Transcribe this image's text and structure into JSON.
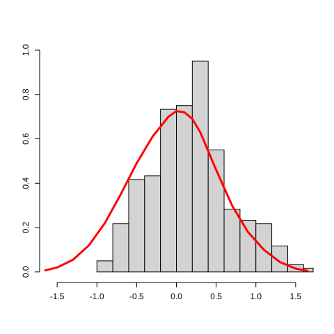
{
  "chart_data": {
    "type": "bar",
    "title": "",
    "xlabel": "",
    "ylabel": "",
    "xlim": [
      -1.72,
      1.72
    ],
    "ylim": [
      -0.01,
      1.0
    ],
    "x_ticks": [
      -1.5,
      -1.0,
      -0.5,
      0.0,
      0.5,
      1.0,
      1.5
    ],
    "x_tick_labels": [
      "-1.5",
      "-1.0",
      "-0.5",
      "0.0",
      "0.5",
      "1.0",
      "1.5"
    ],
    "y_ticks": [
      0.0,
      0.2,
      0.4,
      0.6,
      0.8,
      1.0
    ],
    "y_tick_labels": [
      "0.0",
      "0.2",
      "0.4",
      "0.6",
      "0.8",
      "1.0"
    ],
    "bin_width": 0.2,
    "bins": [
      {
        "x0": -1.0,
        "x1": -0.8,
        "density": 0.05
      },
      {
        "x0": -0.8,
        "x1": -0.6,
        "density": 0.217
      },
      {
        "x0": -0.6,
        "x1": -0.4,
        "density": 0.417
      },
      {
        "x0": -0.4,
        "x1": -0.2,
        "density": 0.433
      },
      {
        "x0": -0.2,
        "x1": 0.0,
        "density": 0.733
      },
      {
        "x0": 0.0,
        "x1": 0.2,
        "density": 0.75
      },
      {
        "x0": 0.2,
        "x1": 0.4,
        "density": 0.95
      },
      {
        "x0": 0.4,
        "x1": 0.6,
        "density": 0.55
      },
      {
        "x0": 0.6,
        "x1": 0.8,
        "density": 0.283
      },
      {
        "x0": 0.8,
        "x1": 1.0,
        "density": 0.233
      },
      {
        "x0": 1.0,
        "x1": 1.2,
        "density": 0.217
      },
      {
        "x0": 1.2,
        "x1": 1.4,
        "density": 0.117
      },
      {
        "x0": 1.4,
        "x1": 1.6,
        "density": 0.033
      },
      {
        "x0": 1.6,
        "x1": 1.8,
        "density": 0.017
      }
    ],
    "curve": {
      "type": "line",
      "color": "#ff0000",
      "points": [
        {
          "x": -1.65,
          "y": 0.007
        },
        {
          "x": -1.5,
          "y": 0.02
        },
        {
          "x": -1.3,
          "y": 0.055
        },
        {
          "x": -1.1,
          "y": 0.12
        },
        {
          "x": -0.9,
          "y": 0.22
        },
        {
          "x": -0.7,
          "y": 0.35
        },
        {
          "x": -0.5,
          "y": 0.49
        },
        {
          "x": -0.3,
          "y": 0.61
        },
        {
          "x": -0.1,
          "y": 0.7
        },
        {
          "x": 0.0,
          "y": 0.725
        },
        {
          "x": 0.1,
          "y": 0.72
        },
        {
          "x": 0.2,
          "y": 0.69
        },
        {
          "x": 0.3,
          "y": 0.63
        },
        {
          "x": 0.5,
          "y": 0.46
        },
        {
          "x": 0.7,
          "y": 0.3
        },
        {
          "x": 0.9,
          "y": 0.18
        },
        {
          "x": 1.1,
          "y": 0.1
        },
        {
          "x": 1.3,
          "y": 0.045
        },
        {
          "x": 1.5,
          "y": 0.015
        },
        {
          "x": 1.65,
          "y": 0.005
        }
      ]
    },
    "bar_fill": "#d3d3d3",
    "bar_stroke": "#000000",
    "grid": false
  }
}
